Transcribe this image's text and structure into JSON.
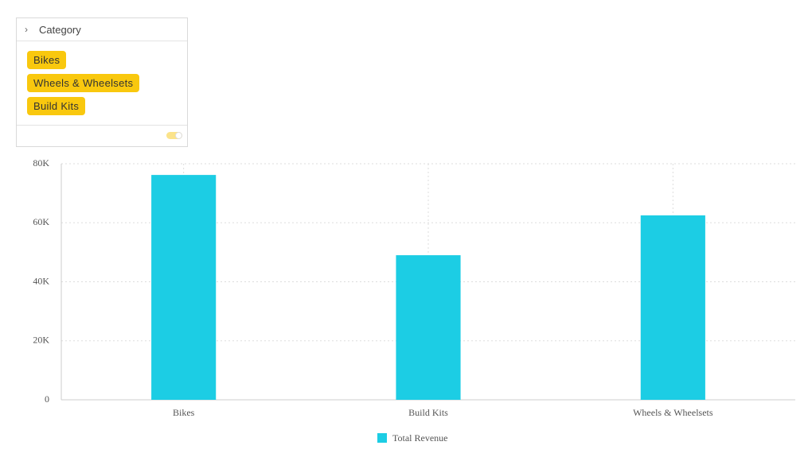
{
  "filter": {
    "title": "Category",
    "chips": [
      "Bikes",
      "Wheels & Wheelsets",
      "Build Kits"
    ]
  },
  "chart_data": {
    "type": "bar",
    "categories": [
      "Bikes",
      "Build Kits",
      "Wheels & Wheelsets"
    ],
    "series": [
      {
        "name": "Total Revenue",
        "color": "#1ccde4",
        "values": [
          76200,
          49000,
          62500
        ]
      }
    ],
    "ylim": [
      0,
      80000
    ],
    "yticks": [
      0,
      {
        "value": 20000,
        "label": "20K"
      },
      {
        "value": 40000,
        "label": "40K"
      },
      {
        "value": 60000,
        "label": "60K"
      },
      {
        "value": 80000,
        "label": "80K"
      }
    ],
    "grid": true,
    "legend": "bottom"
  }
}
